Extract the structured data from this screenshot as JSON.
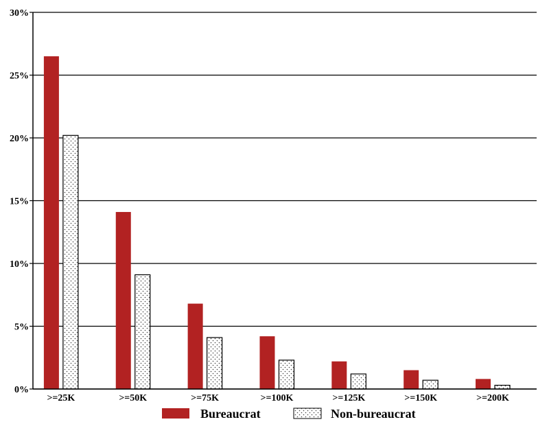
{
  "chart_data": {
    "type": "bar",
    "title": "",
    "xlabel": "",
    "ylabel": "",
    "categories": [
      ">=25K",
      ">=50K",
      ">=75K",
      ">=100K",
      ">=125K",
      ">=150K",
      ">=200K"
    ],
    "series": [
      {
        "name": "Bureaucrat",
        "values": [
          26.5,
          14.1,
          6.8,
          4.2,
          2.2,
          1.5,
          0.8
        ],
        "color": "#b22222",
        "pattern": "solid"
      },
      {
        "name": "Non-bureaucrat",
        "values": [
          20.2,
          9.1,
          4.1,
          2.3,
          1.2,
          0.7,
          0.3
        ],
        "color": "#ffffff",
        "pattern": "dotted"
      }
    ],
    "ylim": [
      0,
      30
    ],
    "yticks": [
      0,
      5,
      10,
      15,
      20,
      25,
      30
    ],
    "ytick_labels": [
      "0%",
      "5%",
      "10%",
      "15%",
      "20%",
      "25%",
      "30%"
    ],
    "grid": true,
    "legend_position": "bottom"
  }
}
